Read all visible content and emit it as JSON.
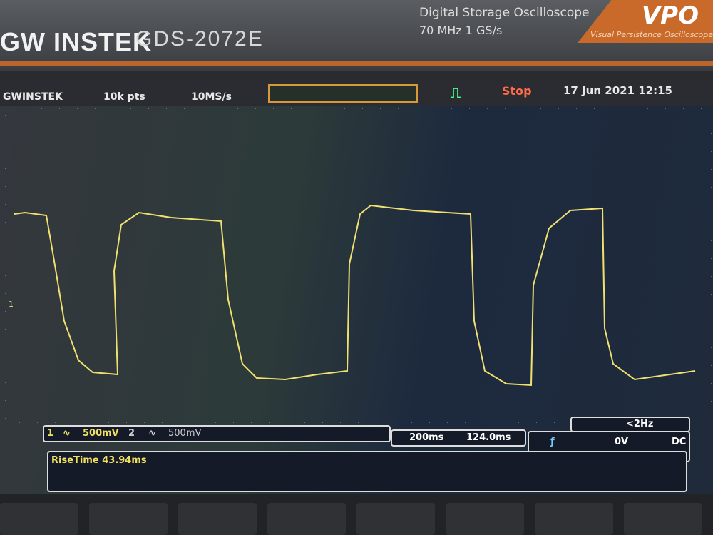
{
  "device": {
    "brand": "GW INSTEK",
    "model": "GDS-2072E",
    "type": "Digital Storage Oscilloscope",
    "spec": "70 MHz  1 GS/s",
    "badge": "VPO",
    "badge_sub": "Visual Persistence Oscilloscope"
  },
  "status": {
    "brand": "GWINSTEK",
    "record": "10k pts",
    "rate": "10MS/s",
    "state": "Stop",
    "datetime": "17 Jun 2021 12:15"
  },
  "channels": [
    {
      "num": "1",
      "coupling": "∿",
      "scale": "500mV",
      "color": "#f0e060"
    },
    {
      "num": "2",
      "coupling": "∿",
      "scale": "500mV",
      "color": "#cccccc"
    }
  ],
  "timebase": {
    "scale": "200ms",
    "position": "124.0ms"
  },
  "trigger": {
    "freq": "<2Hz",
    "slope": "ƒ",
    "level": "0V",
    "coupling": "DC"
  },
  "measurement": {
    "channel": "1",
    "text": "RiseTime 43.94ms"
  },
  "colors": {
    "trace": "#f0e070",
    "accent": "#c96a2a"
  }
}
